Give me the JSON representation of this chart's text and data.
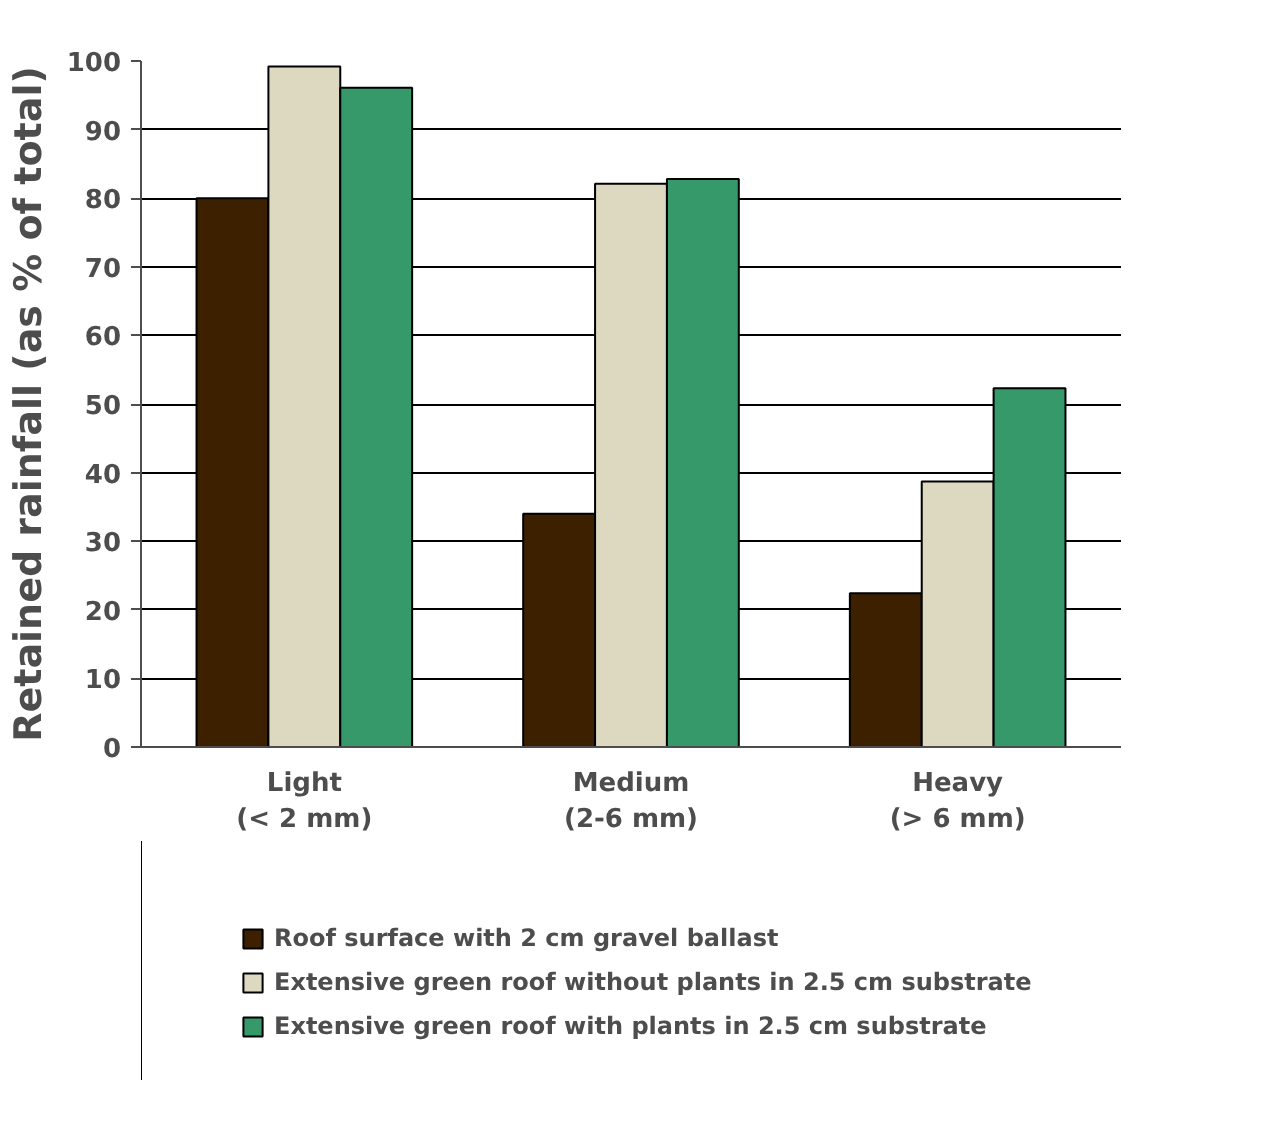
{
  "chart_data": {
    "type": "bar",
    "ylabel": "Retained rainfall (as % of total)",
    "categories": [
      "Light\n(< 2 mm)",
      "Medium\n(2-6 mm)",
      "Heavy\n(> 6 mm)"
    ],
    "series": [
      {
        "name": "Roof surface with 2 cm gravel ballast",
        "color": "#3d2000",
        "values": [
          80,
          34,
          22.4
        ]
      },
      {
        "name": "Extensive green roof without plants in 2.5 cm substrate",
        "color": "#ddd8c0",
        "values": [
          99.2,
          82.1,
          38.7
        ]
      },
      {
        "name": "Extensive green roof with plants in 2.5 cm substrate",
        "color": "#35996a",
        "values": [
          96.1,
          82.8,
          52.3
        ]
      }
    ],
    "ylim": [
      0,
      100
    ],
    "yticks": [
      0,
      10,
      20,
      30,
      40,
      50,
      60,
      70,
      80,
      90,
      100
    ],
    "grid": "y",
    "legend": "bottom"
  }
}
